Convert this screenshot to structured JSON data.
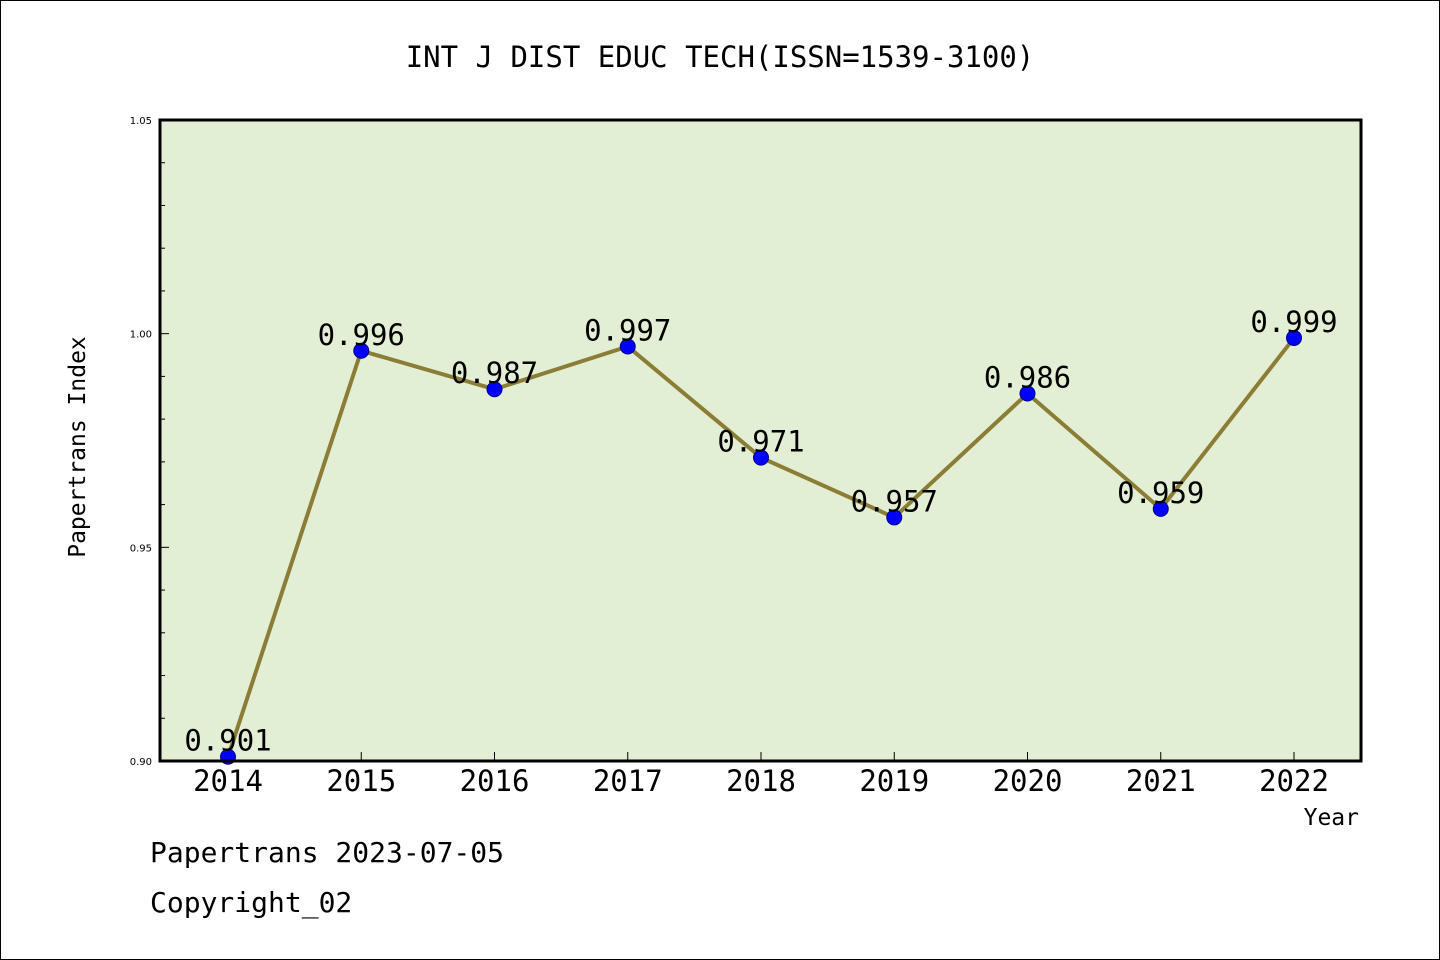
{
  "chart_data": {
    "type": "line",
    "title": "INT J DIST EDUC TECH(ISSN=1539-3100)",
    "xlabel": "Year",
    "ylabel": "Papertrans Index",
    "x": [
      "2014",
      "2015",
      "2016",
      "2017",
      "2018",
      "2019",
      "2020",
      "2021",
      "2022"
    ],
    "values": [
      0.901,
      0.996,
      0.987,
      0.997,
      0.971,
      0.957,
      0.986,
      0.959,
      0.999
    ],
    "data_labels": [
      "0.901",
      "0.996",
      "0.987",
      "0.997",
      "0.971",
      "0.957",
      "0.986",
      "0.959",
      "0.999"
    ],
    "ylim": [
      0.9,
      1.05
    ],
    "y_ticks": [
      "0.90",
      "0.95",
      "1.00",
      "1.05"
    ],
    "y_tick_values": [
      0.9,
      0.95,
      1.0,
      1.05
    ],
    "grid": false,
    "colors": {
      "plot_background": "#e2efd5",
      "line": "#8b7d35",
      "marker": "#0000ff",
      "marker_edge": "#00008b",
      "axes": "#000000"
    }
  },
  "footer": {
    "source_line": "Papertrans 2023-07-05",
    "copyright_line": "Copyright_02"
  }
}
